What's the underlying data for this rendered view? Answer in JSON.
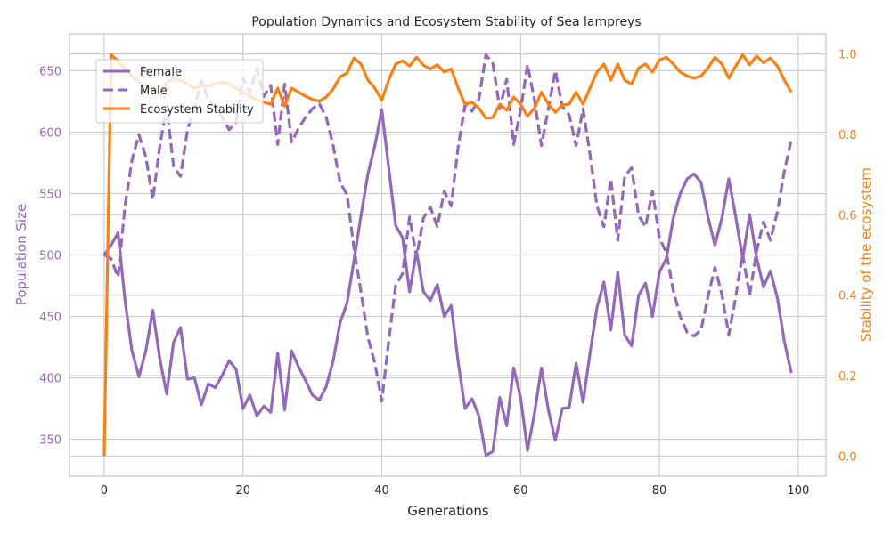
{
  "colors": {
    "female": "#9467bd",
    "male": "#9467bd",
    "stability": "#ff7f0e",
    "grid": "#cccccc",
    "text": "#262626"
  },
  "chart_data": {
    "type": "line",
    "title": "Population Dynamics and Ecosystem Stability of Sea lampreys",
    "xlabel": "Generations",
    "ylabel_left": "Population Size",
    "ylabel_right": "Stability of the ecosystem",
    "xlim": [
      -5,
      104
    ],
    "ylim_left": [
      320,
      680
    ],
    "ylim_right": [
      -0.05,
      1.05
    ],
    "x_ticks": [
      0,
      20,
      40,
      60,
      80,
      100
    ],
    "y_ticks_left": [
      350,
      400,
      450,
      500,
      550,
      600,
      650
    ],
    "y_ticks_right": [
      0.0,
      0.2,
      0.4,
      0.6,
      0.8,
      1.0
    ],
    "y_tick_labels_right": [
      "0.0",
      "0.2",
      "0.4",
      "0.6",
      "0.8",
      "1.0"
    ],
    "grid": true,
    "legend_position": "top-left",
    "series": [
      {
        "name": "Female",
        "axis": "left",
        "style": "solid",
        "x": [
          0,
          1,
          2,
          3,
          4,
          5,
          6,
          7,
          8,
          9,
          10,
          11,
          12,
          13,
          14,
          15,
          16,
          17,
          18,
          19,
          20,
          21,
          22,
          23,
          24,
          25,
          26,
          27,
          28,
          29,
          30,
          31,
          32,
          33,
          34,
          35,
          36,
          37,
          38,
          39,
          40,
          41,
          42,
          43,
          44,
          45,
          46,
          47,
          48,
          49,
          50,
          51,
          52,
          53,
          54,
          55,
          56,
          57,
          58,
          59,
          60,
          61,
          62,
          63,
          64,
          65,
          66,
          67,
          68,
          69,
          70,
          71,
          72,
          73,
          74,
          75,
          76,
          77,
          78,
          79,
          80,
          81,
          82,
          83,
          84,
          85,
          86,
          87,
          88,
          89,
          90,
          91,
          92,
          93,
          94,
          95,
          96,
          97,
          98,
          99
        ],
        "values": [
          500,
          508,
          518,
          463,
          422,
          401,
          422,
          455,
          416,
          387,
          429,
          441,
          399,
          400,
          378,
          395,
          392,
          402,
          414,
          407,
          375,
          386,
          369,
          377,
          372,
          420,
          374,
          422,
          409,
          398,
          386,
          382,
          393,
          414,
          445,
          461,
          496,
          532,
          566,
          589,
          618,
          571,
          524,
          514,
          470,
          503,
          470,
          463,
          476,
          450,
          459,
          413,
          375,
          383,
          369,
          337,
          340,
          384,
          361,
          408,
          384,
          341,
          371,
          408,
          374,
          349,
          375,
          376,
          412,
          380,
          420,
          457,
          478,
          439,
          486,
          435,
          426,
          467,
          477,
          450,
          486,
          497,
          530,
          550,
          562,
          566,
          559,
          531,
          508,
          530,
          562,
          531,
          497,
          533,
          498,
          474,
          487,
          465,
          430,
          404
        ]
      },
      {
        "name": "Male",
        "axis": "left",
        "style": "dashed",
        "x": [
          0,
          1,
          2,
          3,
          4,
          5,
          6,
          7,
          8,
          9,
          10,
          11,
          12,
          13,
          14,
          15,
          16,
          17,
          18,
          19,
          20,
          21,
          22,
          23,
          24,
          25,
          26,
          27,
          28,
          29,
          30,
          31,
          32,
          33,
          34,
          35,
          36,
          37,
          38,
          39,
          40,
          41,
          42,
          43,
          44,
          45,
          46,
          47,
          48,
          49,
          50,
          51,
          52,
          53,
          54,
          55,
          56,
          57,
          58,
          59,
          60,
          61,
          62,
          63,
          64,
          65,
          66,
          67,
          68,
          69,
          70,
          71,
          72,
          73,
          74,
          75,
          76,
          77,
          78,
          79,
          80,
          81,
          82,
          83,
          84,
          85,
          86,
          87,
          88,
          89,
          90,
          91,
          92,
          93,
          94,
          95,
          96,
          97,
          98,
          99
        ],
        "values": [
          500,
          497,
          482,
          540,
          577,
          598,
          580,
          545,
          588,
          621,
          572,
          564,
          602,
          619,
          642,
          627,
          620,
          612,
          602,
          608,
          644,
          632,
          652,
          629,
          638,
          590,
          639,
          592,
          603,
          612,
          619,
          623,
          612,
          589,
          559,
          549,
          505,
          470,
          433,
          412,
          381,
          430,
          475,
          485,
          531,
          498,
          530,
          539,
          523,
          552,
          540,
          588,
          622,
          617,
          627,
          663,
          656,
          619,
          643,
          590,
          618,
          655,
          626,
          589,
          619,
          650,
          621,
          614,
          589,
          619,
          582,
          540,
          523,
          562,
          512,
          564,
          571,
          532,
          523,
          552,
          514,
          502,
          471,
          450,
          437,
          434,
          439,
          466,
          490,
          468,
          435,
          466,
          501,
          467,
          503,
          527,
          512,
          535,
          568,
          594
        ]
      },
      {
        "name": "Ecosystem Stability",
        "axis": "right",
        "style": "solid",
        "x": [
          0,
          1,
          2,
          3,
          4,
          5,
          6,
          7,
          8,
          9,
          10,
          11,
          12,
          13,
          14,
          15,
          16,
          17,
          18,
          19,
          20,
          21,
          22,
          23,
          24,
          25,
          26,
          27,
          28,
          29,
          30,
          31,
          32,
          33,
          34,
          35,
          36,
          37,
          38,
          39,
          40,
          41,
          42,
          43,
          44,
          45,
          46,
          47,
          48,
          49,
          50,
          51,
          52,
          53,
          54,
          55,
          56,
          57,
          58,
          59,
          60,
          61,
          62,
          63,
          64,
          65,
          66,
          67,
          68,
          69,
          70,
          71,
          72,
          73,
          74,
          75,
          76,
          77,
          78,
          79,
          80,
          81,
          82,
          83,
          84,
          85,
          86,
          87,
          88,
          89,
          90,
          91,
          92,
          93,
          94,
          95,
          96,
          97,
          98,
          99
        ],
        "values": [
          0.0,
          0.998,
          0.983,
          0.962,
          0.945,
          0.93,
          0.92,
          0.91,
          0.905,
          0.93,
          0.938,
          0.935,
          0.925,
          0.915,
          0.92,
          0.92,
          0.925,
          0.93,
          0.925,
          0.915,
          0.905,
          0.895,
          0.885,
          0.88,
          0.875,
          0.915,
          0.87,
          0.915,
          0.905,
          0.895,
          0.887,
          0.883,
          0.893,
          0.913,
          0.943,
          0.953,
          0.99,
          0.975,
          0.935,
          0.915,
          0.885,
          0.935,
          0.975,
          0.983,
          0.97,
          0.992,
          0.972,
          0.963,
          0.973,
          0.955,
          0.963,
          0.915,
          0.875,
          0.88,
          0.865,
          0.84,
          0.842,
          0.875,
          0.86,
          0.893,
          0.875,
          0.845,
          0.865,
          0.905,
          0.875,
          0.855,
          0.873,
          0.875,
          0.905,
          0.875,
          0.915,
          0.955,
          0.975,
          0.935,
          0.975,
          0.935,
          0.925,
          0.965,
          0.975,
          0.955,
          0.985,
          0.992,
          0.975,
          0.955,
          0.945,
          0.94,
          0.945,
          0.965,
          0.992,
          0.975,
          0.94,
          0.97,
          0.998,
          0.973,
          0.995,
          0.978,
          0.99,
          0.97,
          0.935,
          0.905
        ]
      }
    ]
  }
}
